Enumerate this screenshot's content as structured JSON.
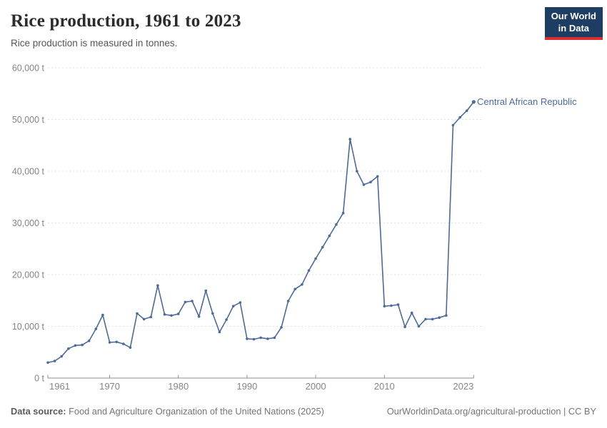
{
  "header": {
    "title": "Rice production, 1961 to 2023",
    "subtitle": "Rice production is measured in tonnes."
  },
  "logo": {
    "line1": "Our World",
    "line2": "in Data"
  },
  "footer": {
    "source_label": "Data source:",
    "source_text": " Food and Agriculture Organization of the United Nations (2025)",
    "link_text": "OurWorldinData.org/agricultural-production",
    "separator": " | ",
    "license": "CC BY"
  },
  "colors": {
    "line": "#4c6a9c",
    "entity_label": "#4c6a9c",
    "gridline": "#e2e2e2",
    "axis": "#8f8f8f",
    "tick_label": "#858585",
    "logo_bg": "#1d3d63",
    "logo_accent": "#dc2e32"
  },
  "chart_data": {
    "type": "line",
    "title": "Rice production, 1961 to 2023",
    "unit": "t",
    "series": [
      {
        "name": "Central African Republic",
        "x": [
          1961,
          1962,
          1963,
          1964,
          1965,
          1966,
          1967,
          1968,
          1969,
          1970,
          1971,
          1972,
          1973,
          1974,
          1975,
          1976,
          1977,
          1978,
          1979,
          1980,
          1981,
          1982,
          1983,
          1984,
          1985,
          1986,
          1987,
          1988,
          1989,
          1990,
          1991,
          1992,
          1993,
          1994,
          1995,
          1996,
          1997,
          1998,
          1999,
          2000,
          2001,
          2002,
          2003,
          2004,
          2005,
          2006,
          2007,
          2008,
          2009,
          2010,
          2011,
          2012,
          2013,
          2014,
          2015,
          2016,
          2017,
          2018,
          2019,
          2020,
          2021,
          2022,
          2023
        ],
        "values": [
          3000,
          3300,
          4200,
          5700,
          6300,
          6400,
          7200,
          9500,
          12200,
          6900,
          7000,
          6600,
          5900,
          12500,
          11400,
          11800,
          17900,
          12300,
          12100,
          12400,
          14700,
          14900,
          11900,
          16900,
          12500,
          8900,
          11300,
          13900,
          14600,
          7600,
          7500,
          7800,
          7600,
          7800,
          9800,
          14900,
          17200,
          18100,
          20800,
          23100,
          25300,
          27500,
          29700,
          31900,
          46200,
          40000,
          37400,
          37900,
          39000,
          13900,
          14000,
          14200,
          9900,
          12600,
          10000,
          11400,
          11400,
          11700,
          12100,
          48900,
          50400,
          51700,
          53400
        ]
      }
    ],
    "xlim": [
      1961,
      2023
    ],
    "ylim": [
      0,
      60000
    ],
    "yticks": [
      0,
      10000,
      20000,
      30000,
      40000,
      50000,
      60000
    ],
    "ytick_labels": [
      "0 t",
      "10,000 t",
      "20,000 t",
      "30,000 t",
      "40,000 t",
      "50,000 t",
      "60,000 t"
    ],
    "xticks": [
      1961,
      1970,
      1980,
      1990,
      2000,
      2010,
      2023
    ],
    "grid": "horizontal-dashed",
    "legend_position": "end-of-line-label"
  }
}
